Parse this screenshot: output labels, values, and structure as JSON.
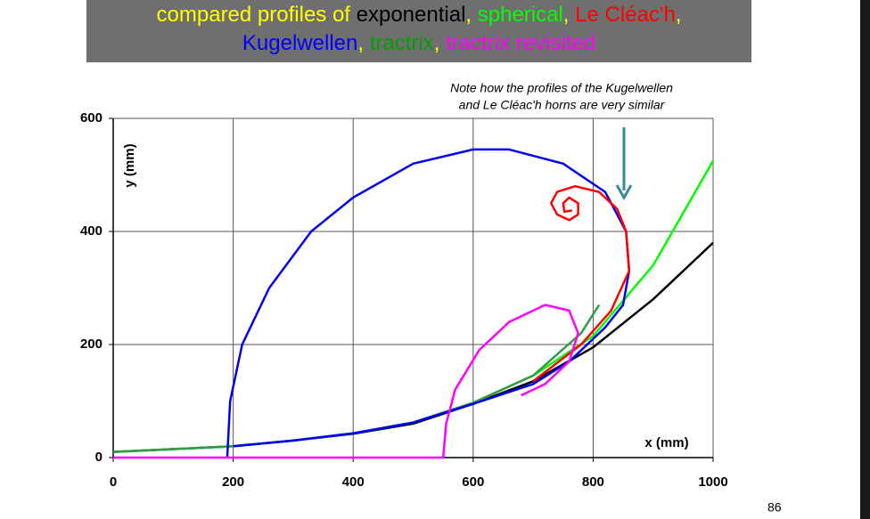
{
  "chart_data": {
    "type": "line",
    "title_lines": [
      [
        {
          "text": "compared profiles of ",
          "color": "#ffff00"
        },
        {
          "text": "exponential",
          "color": "#000000"
        },
        {
          "text": ", ",
          "color": "#ffff00"
        },
        {
          "text": "spherical",
          "color": "#00ff00"
        },
        {
          "text": ", ",
          "color": "#ffff00"
        },
        {
          "text": "Le Cléac'h",
          "color": "#ff0000"
        },
        {
          "text": ",",
          "color": "#ffff00"
        }
      ],
      [
        {
          "text": "Kugelwellen",
          "color": "#0000ff"
        },
        {
          "text": ", ",
          "color": "#ffff00"
        },
        {
          "text": "tractrix",
          "color": "#00a000"
        },
        {
          "text": ", ",
          "color": "#ffff00"
        },
        {
          "text": "tractrix revisited",
          "color": "#ff00ff"
        }
      ]
    ],
    "annotation_lines": [
      "Note how the profiles of the Kugelwellen",
      "and Le Cléac'h horns are very similar"
    ],
    "x_label": "x   (mm)",
    "y_label": "y  (mm)",
    "page_number": "86",
    "xlim": [
      0,
      1000
    ],
    "xticks": [
      0,
      200,
      400,
      600,
      800,
      1000
    ],
    "ylim": [
      0,
      600
    ],
    "yticks": [
      0,
      200,
      400,
      600
    ],
    "grid": true,
    "series": [
      {
        "name": "exponential",
        "color": "#000000",
        "x": [
          0,
          100,
          200,
          300,
          400,
          500,
          600,
          700,
          800,
          900,
          1000
        ],
        "values": [
          10,
          15,
          20,
          30,
          42,
          60,
          95,
          135,
          195,
          280,
          380
        ]
      },
      {
        "name": "spherical",
        "color": "#00ff00",
        "x": [
          0,
          100,
          200,
          300,
          400,
          500,
          600,
          700,
          800,
          900,
          1000
        ],
        "values": [
          10,
          15,
          20,
          30,
          43,
          62,
          97,
          145,
          215,
          340,
          525
        ]
      },
      {
        "name": "tractrix",
        "color": "#339944",
        "x": [
          0,
          100,
          200,
          300,
          400,
          500,
          600,
          700,
          780,
          810
        ],
        "values": [
          10,
          15,
          20,
          30,
          43,
          62,
          97,
          145,
          220,
          270
        ]
      },
      {
        "name": "Kugelwellen",
        "color": "#0000ee",
        "x": [
          190,
          195,
          215,
          260,
          330,
          400,
          500,
          600,
          660,
          750,
          820,
          855,
          860,
          850,
          820,
          760,
          700,
          600,
          500,
          400,
          300,
          200
        ],
        "values": [
          0,
          100,
          200,
          300,
          400,
          460,
          520,
          545,
          545,
          520,
          470,
          400,
          330,
          270,
          230,
          170,
          130,
          95,
          62,
          43,
          30,
          20
        ]
      },
      {
        "name": "Le Cléac'h",
        "color": "#ff0000",
        "x": [
          700,
          780,
          830,
          860,
          855,
          840,
          810,
          770,
          740,
          730,
          740,
          760,
          775,
          775,
          760,
          750,
          752,
          765
        ],
        "values": [
          135,
          200,
          260,
          330,
          400,
          440,
          470,
          480,
          470,
          450,
          430,
          420,
          430,
          450,
          460,
          450,
          435,
          437
        ]
      },
      {
        "name": "tractrix revisited",
        "color": "#ff00ff",
        "x": [
          0,
          550,
          555,
          570,
          610,
          660,
          720,
          760,
          775,
          760,
          720,
          680
        ],
        "values": [
          0,
          0,
          60,
          120,
          190,
          240,
          270,
          260,
          220,
          170,
          130,
          110
        ]
      }
    ]
  }
}
